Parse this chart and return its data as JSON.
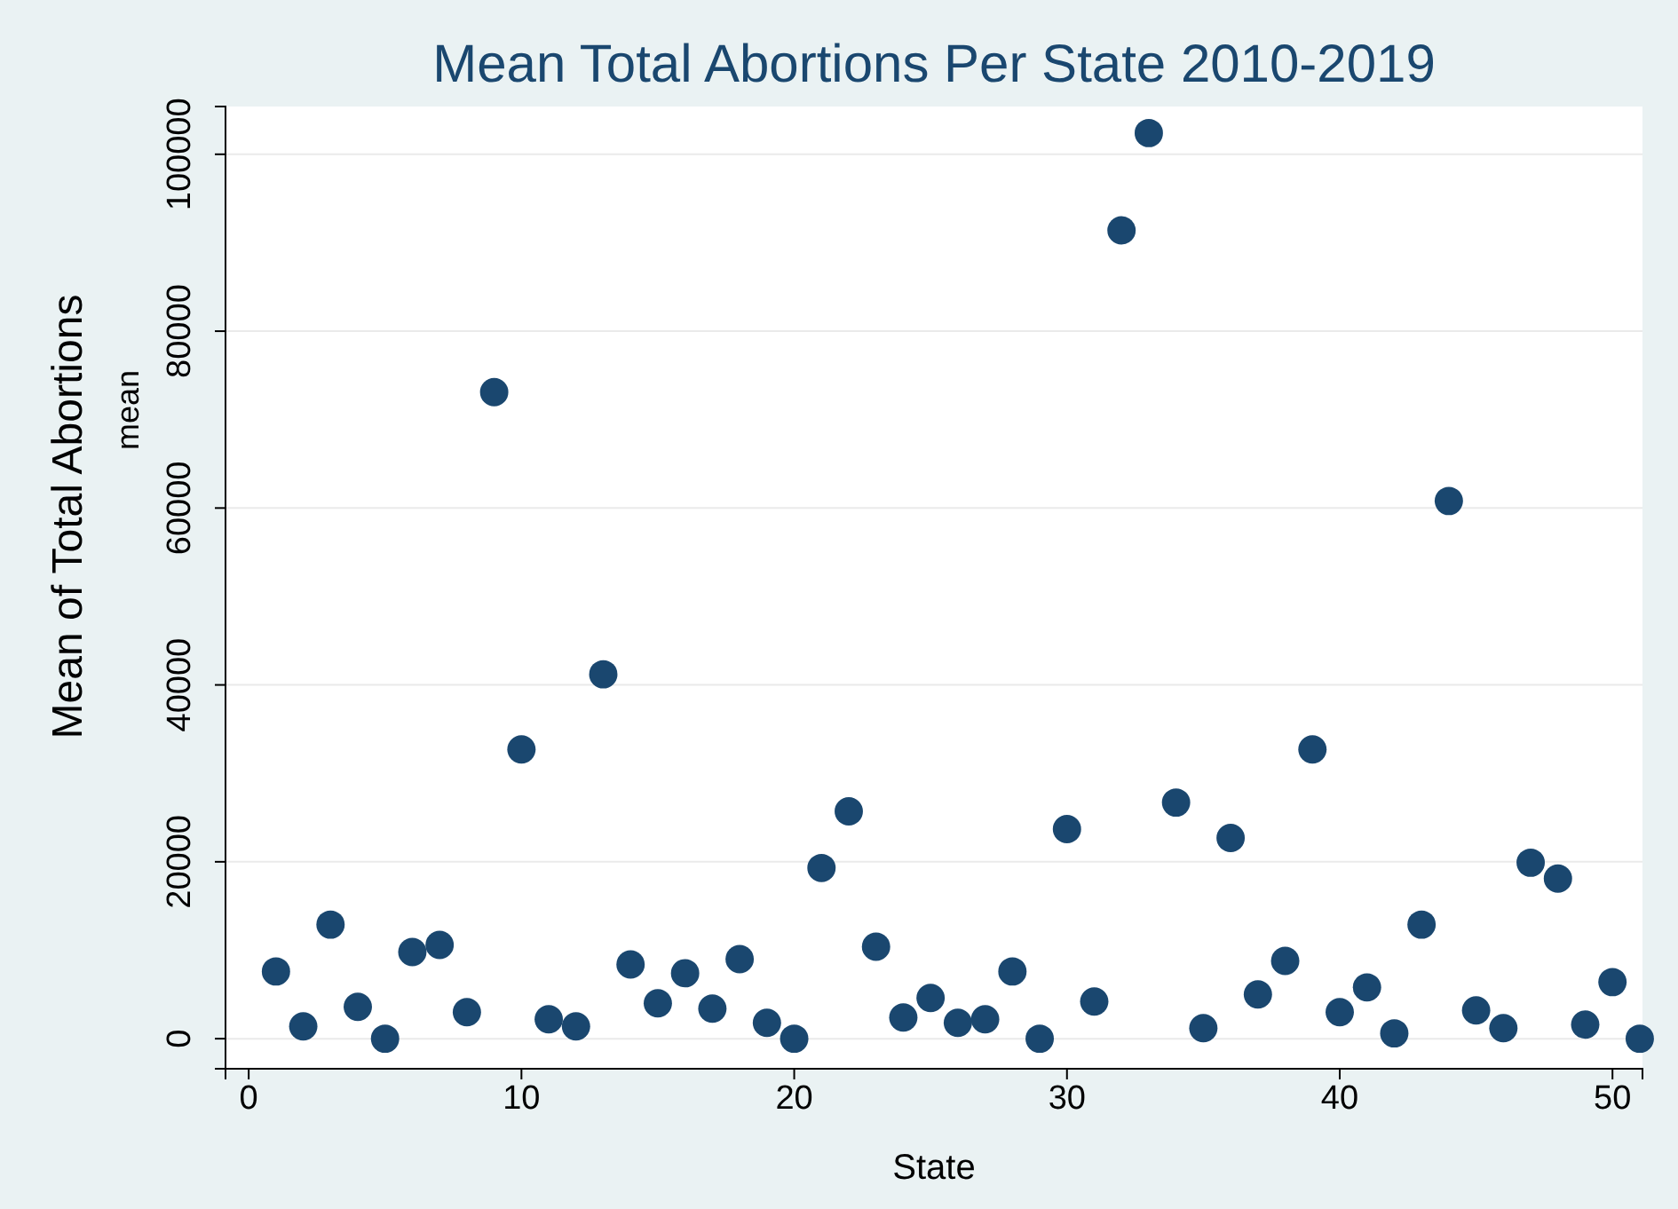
{
  "chart_data": {
    "type": "scatter",
    "title": "Mean Total Abortions Per State 2010-2019",
    "xlabel": "State",
    "ylabel": "Mean of Total Abortions",
    "annotations": [
      "mean"
    ],
    "x": [
      1,
      2,
      3,
      4,
      5,
      6,
      7,
      8,
      9,
      10,
      11,
      12,
      13,
      14,
      15,
      16,
      17,
      18,
      19,
      20,
      21,
      22,
      23,
      24,
      25,
      26,
      27,
      28,
      29,
      30,
      31,
      32,
      33,
      34,
      35,
      36,
      37,
      38,
      39,
      40,
      41,
      42,
      43,
      44,
      45,
      46,
      47,
      48,
      49,
      50,
      51
    ],
    "series": [
      {
        "color": "#1a476f",
        "values": [
          7600,
          1400,
          12900,
          3600,
          0,
          9800,
          10600,
          3000,
          73100,
          32700,
          2200,
          1400,
          41200,
          8400,
          4000,
          7400,
          3400,
          9000,
          1800,
          0,
          19300,
          25700,
          10400,
          2400,
          4600,
          1800,
          2200,
          7600,
          0,
          23700,
          4200,
          91400,
          102400,
          26700,
          1200,
          22700,
          5000,
          8800,
          32700,
          3000,
          5800,
          600,
          12900,
          60800,
          3200,
          1200,
          19900,
          18100,
          1600,
          6400,
          0
        ]
      }
    ],
    "xlim": [
      -0.85,
      51.1
    ],
    "ylim": [
      -3400,
      105400
    ],
    "xticks": [
      0,
      10,
      20,
      30,
      40,
      50
    ],
    "yticks": [
      0,
      20000,
      40000,
      60000,
      80000,
      100000
    ],
    "grid": "y",
    "marker": "circle"
  }
}
